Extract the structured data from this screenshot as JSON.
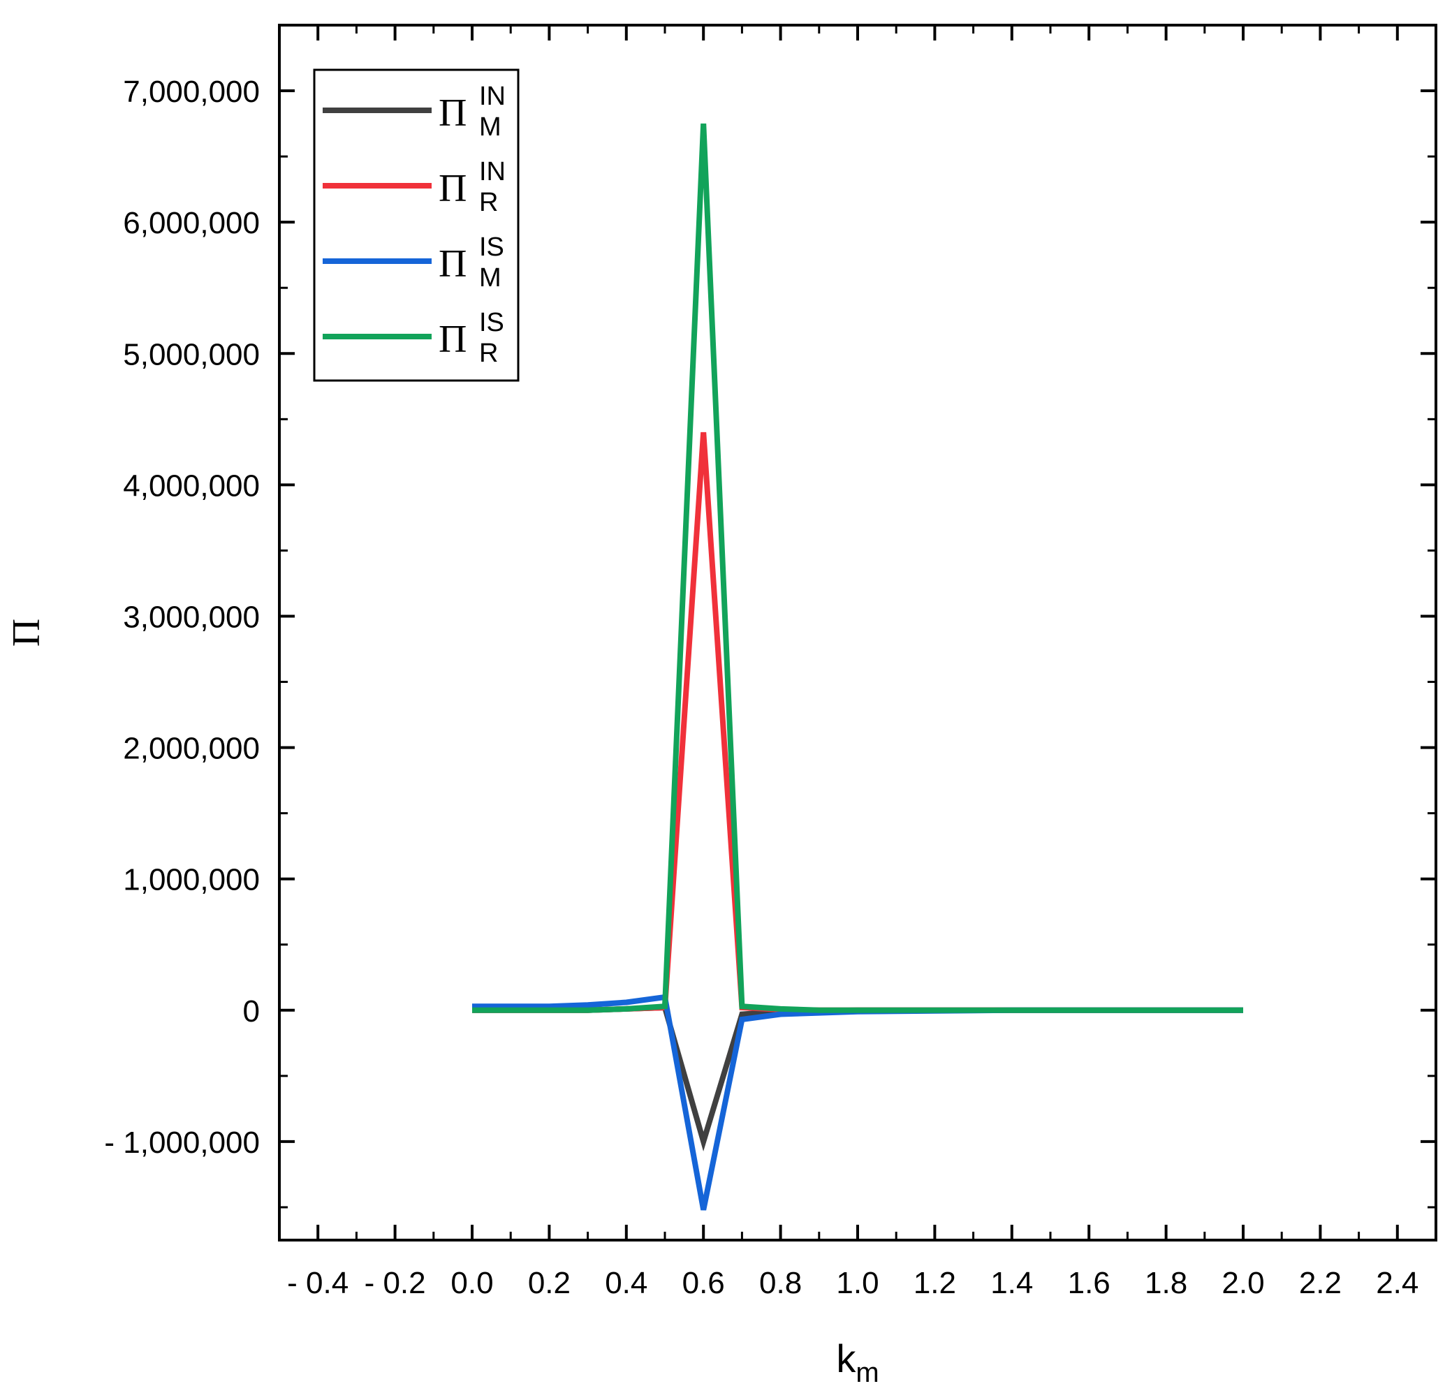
{
  "chart_data": {
    "type": "line",
    "xlabel": {
      "main": "k",
      "sub": "m"
    },
    "ylabel": "Π",
    "xlim": [
      -0.5,
      2.5
    ],
    "ylim": [
      -1750000,
      7500000
    ],
    "xticks": [
      -0.4,
      -0.2,
      0.0,
      0.2,
      0.4,
      0.6,
      0.8,
      1.0,
      1.2,
      1.4,
      1.6,
      1.8,
      2.0,
      2.2,
      2.4
    ],
    "xtick_labels": [
      "- 0.4",
      "- 0.2",
      "0.0",
      "0.2",
      "0.4",
      "0.6",
      "0.8",
      "1.0",
      "1.2",
      "1.4",
      "1.6",
      "1.8",
      "2.0",
      "2.2",
      "2.4"
    ],
    "yticks": [
      -1000000,
      0,
      1000000,
      2000000,
      3000000,
      4000000,
      5000000,
      6000000,
      7000000
    ],
    "ytick_labels": [
      "- 1,000,000",
      "0",
      "1,000,000",
      "2,000,000",
      "3,000,000",
      "4,000,000",
      "5,000,000",
      "6,000,000",
      "7,000,000"
    ],
    "grid": false,
    "legend_position": "top-left",
    "series": [
      {
        "name": "Π_M^IN",
        "symbol": "Π",
        "sup": "IN",
        "sub": "M",
        "color": "#404040",
        "x": [
          0.0,
          0.1,
          0.2,
          0.3,
          0.4,
          0.5,
          0.6,
          0.7,
          0.8,
          0.9,
          1.0,
          1.2,
          1.4,
          1.6,
          1.8,
          2.0
        ],
        "y": [
          0,
          0,
          0,
          0,
          10000,
          20000,
          -1000000,
          -30000,
          -10000,
          -5000,
          0,
          0,
          0,
          0,
          0,
          0
        ]
      },
      {
        "name": "Π_R^IN",
        "symbol": "Π",
        "sup": "IN",
        "sub": "R",
        "color": "#f0313a",
        "x": [
          0.0,
          0.1,
          0.2,
          0.3,
          0.4,
          0.5,
          0.6,
          0.7,
          0.8,
          0.9,
          1.0,
          1.2,
          1.4,
          1.6,
          1.8,
          2.0
        ],
        "y": [
          0,
          0,
          0,
          0,
          10000,
          20000,
          4400000,
          20000,
          5000,
          0,
          0,
          0,
          0,
          0,
          0,
          0
        ]
      },
      {
        "name": "Π_M^IS",
        "symbol": "Π",
        "sup": "IS",
        "sub": "M",
        "color": "#1565d8",
        "x": [
          0.0,
          0.1,
          0.2,
          0.3,
          0.4,
          0.5,
          0.6,
          0.7,
          0.8,
          0.9,
          1.0,
          1.2,
          1.4,
          1.6,
          1.8,
          2.0
        ],
        "y": [
          30000,
          30000,
          30000,
          40000,
          60000,
          100000,
          -1520000,
          -70000,
          -30000,
          -20000,
          -10000,
          -5000,
          0,
          0,
          0,
          0
        ]
      },
      {
        "name": "Π_R^IS",
        "symbol": "Π",
        "sup": "IS",
        "sub": "R",
        "color": "#12a35a",
        "x": [
          0.0,
          0.1,
          0.2,
          0.3,
          0.4,
          0.5,
          0.6,
          0.7,
          0.8,
          0.9,
          1.0,
          1.2,
          1.4,
          1.6,
          1.8,
          2.0
        ],
        "y": [
          0,
          0,
          0,
          0,
          10000,
          30000,
          6750000,
          30000,
          10000,
          0,
          0,
          0,
          0,
          0,
          0,
          0
        ]
      }
    ]
  }
}
